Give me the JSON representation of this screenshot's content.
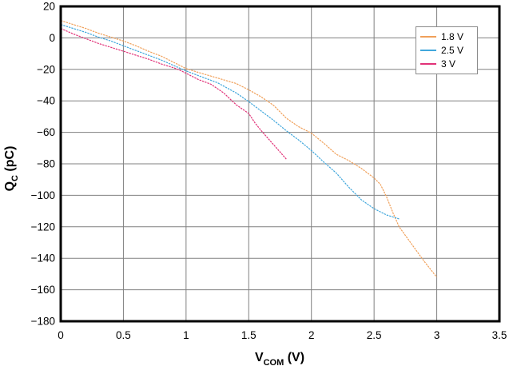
{
  "chart_data": {
    "type": "line",
    "title": "",
    "xlabel": "VCOM (V)",
    "xlabel_parts": {
      "main": "V",
      "sub": "COM",
      "unit": " (V)"
    },
    "ylabel": "QC (pC)",
    "ylabel_parts": {
      "main": "Q",
      "sub": "C",
      "unit": " (pC)"
    },
    "xlim": [
      0,
      3.5
    ],
    "ylim": [
      -180,
      20
    ],
    "grid": true,
    "legend_position": "upper-right",
    "x_ticks": [
      0,
      0.5,
      1,
      1.5,
      2,
      2.5,
      3,
      3.5
    ],
    "x_tick_labels": [
      "0",
      "0.5",
      "1",
      "1.5",
      "2",
      "2.5",
      "3",
      "3.5"
    ],
    "y_ticks": [
      20,
      0,
      -20,
      -40,
      -60,
      -80,
      -100,
      -120,
      -140,
      -160,
      -180
    ],
    "y_tick_labels": [
      "20",
      "0",
      "−20",
      "−40",
      "−60",
      "−80",
      "−100",
      "−120",
      "−140",
      "−160",
      "−180"
    ],
    "series": [
      {
        "name": "1.8 V",
        "color": "#F0A05A",
        "points": [
          [
            0,
            11
          ],
          [
            0.1,
            8.5
          ],
          [
            0.2,
            6
          ],
          [
            0.3,
            3
          ],
          [
            0.4,
            0.5
          ],
          [
            0.5,
            -2
          ],
          [
            0.6,
            -5
          ],
          [
            0.7,
            -8.5
          ],
          [
            0.8,
            -11.5
          ],
          [
            0.9,
            -15.5
          ],
          [
            1,
            -19.5
          ],
          [
            1.1,
            -22
          ],
          [
            1.25,
            -25.5
          ],
          [
            1.4,
            -29
          ],
          [
            1.5,
            -33
          ],
          [
            1.6,
            -37.5
          ],
          [
            1.7,
            -43
          ],
          [
            1.8,
            -51
          ],
          [
            1.9,
            -56.5
          ],
          [
            2,
            -60.5
          ],
          [
            2.1,
            -67
          ],
          [
            2.2,
            -74
          ],
          [
            2.3,
            -78
          ],
          [
            2.4,
            -83
          ],
          [
            2.5,
            -89
          ],
          [
            2.55,
            -93
          ],
          [
            2.6,
            -101
          ],
          [
            2.65,
            -111
          ],
          [
            2.7,
            -120
          ],
          [
            2.8,
            -131
          ],
          [
            2.9,
            -142
          ],
          [
            3,
            -152
          ]
        ]
      },
      {
        "name": "2.5 V",
        "color": "#41A7DC",
        "points": [
          [
            0,
            8.5
          ],
          [
            0.1,
            6
          ],
          [
            0.2,
            3.5
          ],
          [
            0.3,
            0.5
          ],
          [
            0.4,
            -2
          ],
          [
            0.5,
            -5
          ],
          [
            0.6,
            -8
          ],
          [
            0.7,
            -11
          ],
          [
            0.8,
            -14
          ],
          [
            0.9,
            -17.5
          ],
          [
            1,
            -21
          ],
          [
            1.1,
            -24
          ],
          [
            1.25,
            -28.5
          ],
          [
            1.4,
            -35
          ],
          [
            1.5,
            -40.5
          ],
          [
            1.6,
            -46.5
          ],
          [
            1.7,
            -52.5
          ],
          [
            1.8,
            -59
          ],
          [
            1.9,
            -65
          ],
          [
            2,
            -71.5
          ],
          [
            2.1,
            -79
          ],
          [
            2.2,
            -86
          ],
          [
            2.3,
            -95
          ],
          [
            2.4,
            -103
          ],
          [
            2.5,
            -108.5
          ],
          [
            2.6,
            -112.5
          ],
          [
            2.7,
            -115
          ]
        ]
      },
      {
        "name": "3 V",
        "color": "#E13278",
        "points": [
          [
            0,
            6
          ],
          [
            0.1,
            2.5
          ],
          [
            0.2,
            -0.5
          ],
          [
            0.3,
            -3.5
          ],
          [
            0.4,
            -6
          ],
          [
            0.5,
            -8.5
          ],
          [
            0.6,
            -11
          ],
          [
            0.7,
            -13.5
          ],
          [
            0.8,
            -16.5
          ],
          [
            0.9,
            -19
          ],
          [
            0.95,
            -20.5
          ],
          [
            1,
            -22.5
          ],
          [
            1.1,
            -26.5
          ],
          [
            1.2,
            -29.5
          ],
          [
            1.3,
            -35
          ],
          [
            1.4,
            -42.5
          ],
          [
            1.5,
            -48
          ],
          [
            1.55,
            -54
          ],
          [
            1.6,
            -59
          ],
          [
            1.7,
            -68
          ],
          [
            1.75,
            -72.5
          ],
          [
            1.8,
            -77
          ]
        ]
      }
    ],
    "styles": {
      "grid_color": "#808080",
      "border_color": "#000000",
      "background": "#FFFFFF",
      "text_color": "#000000",
      "legend_border_color": "#8C8C8C"
    }
  }
}
